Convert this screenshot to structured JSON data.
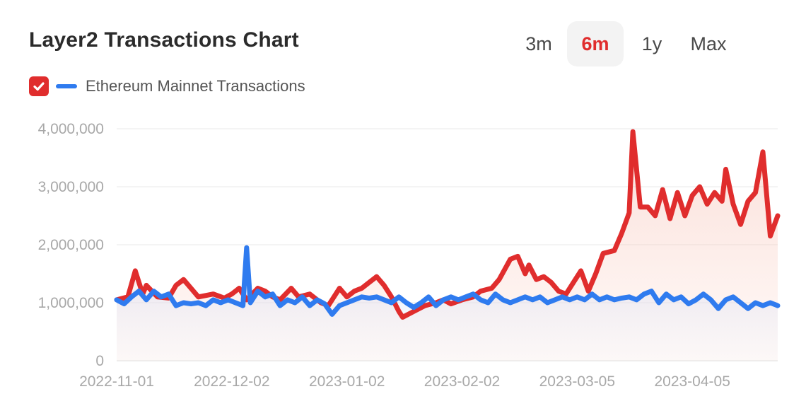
{
  "header": {
    "title": "Layer2 Transactions Chart"
  },
  "ranges": [
    {
      "label": "3m",
      "active": false
    },
    {
      "label": "6m",
      "active": true
    },
    {
      "label": "1y",
      "active": false
    },
    {
      "label": "Max",
      "active": false
    }
  ],
  "legend": {
    "label": "Ethereum Mainnet Transactions",
    "checked": true
  },
  "colors": {
    "layer2": "#e02d2d",
    "mainnet": "#2f7bef",
    "active_range": "#e02d2d"
  },
  "chart_data": {
    "type": "area",
    "title": "Layer2 Transactions Chart",
    "xlabel": "",
    "ylabel": "",
    "x_start": "2022-11-01",
    "x_end": "2023-04-28",
    "ylim": [
      0,
      4000000
    ],
    "y_ticks": [
      "0",
      "1,000,000",
      "2,000,000",
      "3,000,000",
      "4,000,000"
    ],
    "x_ticks": [
      "2022-11-01",
      "2022-12-02",
      "2023-01-02",
      "2023-02-02",
      "2023-03-05",
      "2023-04-05"
    ],
    "grid": true,
    "legend_position": "top-left",
    "series": [
      {
        "name": "",
        "color": "#e02d2d",
        "points": [
          [
            "2022-11-01",
            1050000
          ],
          [
            "2022-11-04",
            1100000
          ],
          [
            "2022-11-06",
            1550000
          ],
          [
            "2022-11-08",
            1150000
          ],
          [
            "2022-11-09",
            1300000
          ],
          [
            "2022-11-12",
            1100000
          ],
          [
            "2022-11-15",
            1080000
          ],
          [
            "2022-11-17",
            1300000
          ],
          [
            "2022-11-19",
            1400000
          ],
          [
            "2022-11-21",
            1250000
          ],
          [
            "2022-11-23",
            1100000
          ],
          [
            "2022-11-27",
            1150000
          ],
          [
            "2022-11-30",
            1080000
          ],
          [
            "2022-12-02",
            1150000
          ],
          [
            "2022-12-04",
            1250000
          ],
          [
            "2022-12-06",
            1050000
          ],
          [
            "2022-12-09",
            1250000
          ],
          [
            "2022-12-11",
            1200000
          ],
          [
            "2022-12-13",
            1100000
          ],
          [
            "2022-12-15",
            1050000
          ],
          [
            "2022-12-18",
            1250000
          ],
          [
            "2022-12-20",
            1100000
          ],
          [
            "2022-12-23",
            1150000
          ],
          [
            "2022-12-26",
            1000000
          ],
          [
            "2022-12-28",
            950000
          ],
          [
            "2022-12-31",
            1250000
          ],
          [
            "2023-01-02",
            1100000
          ],
          [
            "2023-01-04",
            1200000
          ],
          [
            "2023-01-06",
            1250000
          ],
          [
            "2023-01-08",
            1350000
          ],
          [
            "2023-01-10",
            1450000
          ],
          [
            "2023-01-12",
            1300000
          ],
          [
            "2023-01-14",
            1100000
          ],
          [
            "2023-01-16",
            850000
          ],
          [
            "2023-01-17",
            750000
          ],
          [
            "2023-01-20",
            850000
          ],
          [
            "2023-01-23",
            950000
          ],
          [
            "2023-01-26",
            1000000
          ],
          [
            "2023-01-28",
            1050000
          ],
          [
            "2023-01-30",
            980000
          ],
          [
            "2023-02-02",
            1050000
          ],
          [
            "2023-02-05",
            1100000
          ],
          [
            "2023-02-07",
            1200000
          ],
          [
            "2023-02-10",
            1250000
          ],
          [
            "2023-02-12",
            1400000
          ],
          [
            "2023-02-15",
            1750000
          ],
          [
            "2023-02-17",
            1800000
          ],
          [
            "2023-02-19",
            1500000
          ],
          [
            "2023-02-20",
            1650000
          ],
          [
            "2023-02-22",
            1400000
          ],
          [
            "2023-02-24",
            1450000
          ],
          [
            "2023-02-26",
            1350000
          ],
          [
            "2023-02-28",
            1200000
          ],
          [
            "2023-03-02",
            1150000
          ],
          [
            "2023-03-04",
            1350000
          ],
          [
            "2023-03-06",
            1550000
          ],
          [
            "2023-03-08",
            1200000
          ],
          [
            "2023-03-10",
            1500000
          ],
          [
            "2023-03-12",
            1850000
          ],
          [
            "2023-03-15",
            1900000
          ],
          [
            "2023-03-17",
            2200000
          ],
          [
            "2023-03-19",
            2550000
          ],
          [
            "2023-03-20",
            3950000
          ],
          [
            "2023-03-22",
            2650000
          ],
          [
            "2023-03-24",
            2650000
          ],
          [
            "2023-03-26",
            2500000
          ],
          [
            "2023-03-28",
            2950000
          ],
          [
            "2023-03-30",
            2450000
          ],
          [
            "2023-04-01",
            2900000
          ],
          [
            "2023-04-03",
            2500000
          ],
          [
            "2023-04-05",
            2850000
          ],
          [
            "2023-04-07",
            3000000
          ],
          [
            "2023-04-09",
            2700000
          ],
          [
            "2023-04-11",
            2900000
          ],
          [
            "2023-04-13",
            2750000
          ],
          [
            "2023-04-14",
            3300000
          ],
          [
            "2023-04-16",
            2700000
          ],
          [
            "2023-04-18",
            2350000
          ],
          [
            "2023-04-20",
            2750000
          ],
          [
            "2023-04-22",
            2900000
          ],
          [
            "2023-04-24",
            3600000
          ],
          [
            "2023-04-26",
            2150000
          ],
          [
            "2023-04-28",
            2500000
          ]
        ]
      },
      {
        "name": "Ethereum Mainnet Transactions",
        "color": "#2f7bef",
        "points": [
          [
            "2022-11-01",
            1050000
          ],
          [
            "2022-11-03",
            980000
          ],
          [
            "2022-11-05",
            1100000
          ],
          [
            "2022-11-07",
            1200000
          ],
          [
            "2022-11-09",
            1050000
          ],
          [
            "2022-11-11",
            1200000
          ],
          [
            "2022-11-13",
            1100000
          ],
          [
            "2022-11-15",
            1150000
          ],
          [
            "2022-11-17",
            950000
          ],
          [
            "2022-11-19",
            1000000
          ],
          [
            "2022-11-21",
            980000
          ],
          [
            "2022-11-23",
            1000000
          ],
          [
            "2022-11-25",
            950000
          ],
          [
            "2022-11-27",
            1050000
          ],
          [
            "2022-11-29",
            1000000
          ],
          [
            "2022-12-01",
            1050000
          ],
          [
            "2022-12-03",
            1000000
          ],
          [
            "2022-12-05",
            950000
          ],
          [
            "2022-12-06",
            1950000
          ],
          [
            "2022-12-07",
            1000000
          ],
          [
            "2022-12-09",
            1200000
          ],
          [
            "2022-12-11",
            1100000
          ],
          [
            "2022-12-13",
            1150000
          ],
          [
            "2022-12-15",
            950000
          ],
          [
            "2022-12-17",
            1050000
          ],
          [
            "2022-12-19",
            1000000
          ],
          [
            "2022-12-21",
            1100000
          ],
          [
            "2022-12-23",
            950000
          ],
          [
            "2022-12-25",
            1050000
          ],
          [
            "2022-12-27",
            980000
          ],
          [
            "2022-12-29",
            800000
          ],
          [
            "2022-12-31",
            950000
          ],
          [
            "2023-01-02",
            1000000
          ],
          [
            "2023-01-04",
            1050000
          ],
          [
            "2023-01-06",
            1100000
          ],
          [
            "2023-01-08",
            1080000
          ],
          [
            "2023-01-10",
            1100000
          ],
          [
            "2023-01-12",
            1050000
          ],
          [
            "2023-01-14",
            1000000
          ],
          [
            "2023-01-16",
            1100000
          ],
          [
            "2023-01-18",
            1000000
          ],
          [
            "2023-01-20",
            920000
          ],
          [
            "2023-01-22",
            1000000
          ],
          [
            "2023-01-24",
            1100000
          ],
          [
            "2023-01-26",
            950000
          ],
          [
            "2023-01-28",
            1050000
          ],
          [
            "2023-01-30",
            1100000
          ],
          [
            "2023-02-01",
            1050000
          ],
          [
            "2023-02-03",
            1100000
          ],
          [
            "2023-02-05",
            1150000
          ],
          [
            "2023-02-07",
            1050000
          ],
          [
            "2023-02-09",
            1000000
          ],
          [
            "2023-02-11",
            1150000
          ],
          [
            "2023-02-13",
            1050000
          ],
          [
            "2023-02-15",
            1000000
          ],
          [
            "2023-02-17",
            1050000
          ],
          [
            "2023-02-19",
            1100000
          ],
          [
            "2023-02-21",
            1050000
          ],
          [
            "2023-02-23",
            1100000
          ],
          [
            "2023-02-25",
            1000000
          ],
          [
            "2023-02-27",
            1050000
          ],
          [
            "2023-03-01",
            1100000
          ],
          [
            "2023-03-03",
            1050000
          ],
          [
            "2023-03-05",
            1100000
          ],
          [
            "2023-03-07",
            1050000
          ],
          [
            "2023-03-09",
            1150000
          ],
          [
            "2023-03-11",
            1050000
          ],
          [
            "2023-03-13",
            1100000
          ],
          [
            "2023-03-15",
            1050000
          ],
          [
            "2023-03-17",
            1080000
          ],
          [
            "2023-03-19",
            1100000
          ],
          [
            "2023-03-21",
            1050000
          ],
          [
            "2023-03-23",
            1150000
          ],
          [
            "2023-03-25",
            1200000
          ],
          [
            "2023-03-27",
            1000000
          ],
          [
            "2023-03-29",
            1150000
          ],
          [
            "2023-03-31",
            1050000
          ],
          [
            "2023-04-02",
            1100000
          ],
          [
            "2023-04-04",
            980000
          ],
          [
            "2023-04-06",
            1050000
          ],
          [
            "2023-04-08",
            1150000
          ],
          [
            "2023-04-10",
            1050000
          ],
          [
            "2023-04-12",
            900000
          ],
          [
            "2023-04-14",
            1050000
          ],
          [
            "2023-04-16",
            1100000
          ],
          [
            "2023-04-18",
            1000000
          ],
          [
            "2023-04-20",
            900000
          ],
          [
            "2023-04-22",
            1000000
          ],
          [
            "2023-04-24",
            950000
          ],
          [
            "2023-04-26",
            1000000
          ],
          [
            "2023-04-28",
            950000
          ]
        ]
      }
    ]
  }
}
